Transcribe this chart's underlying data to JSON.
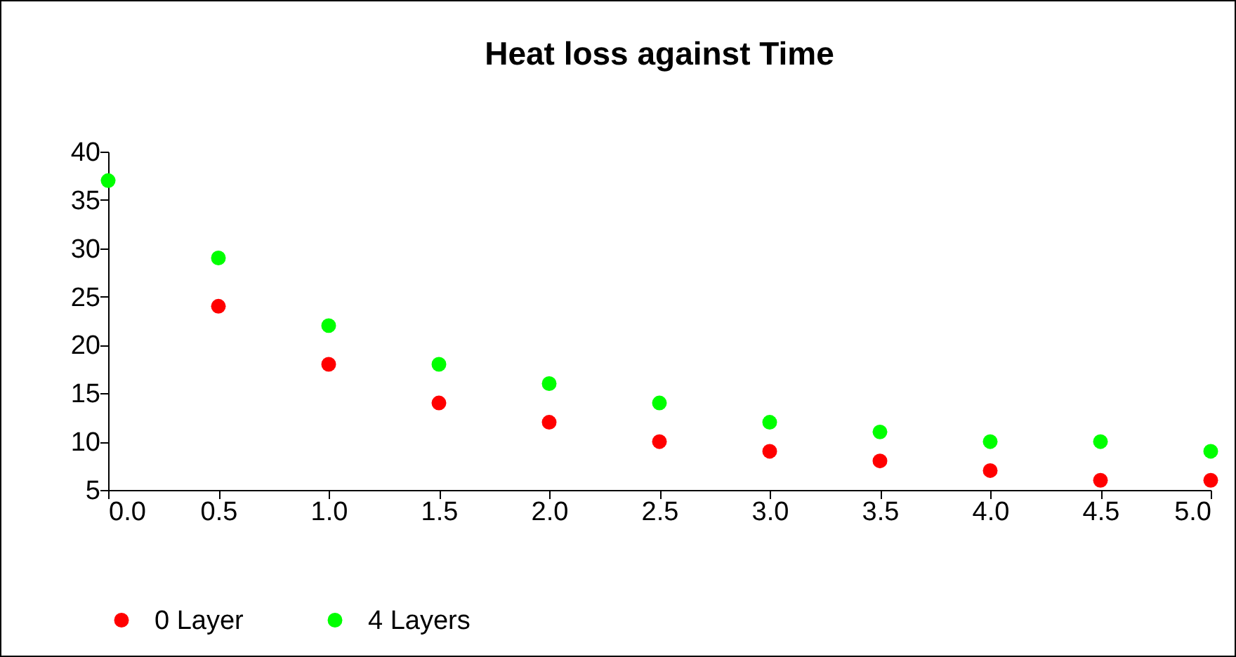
{
  "chart_data": {
    "type": "scatter",
    "title": "Heat loss against Time",
    "x": [
      0,
      0.5,
      1,
      1.5,
      2,
      2.5,
      3,
      3.5,
      4,
      4.5,
      5
    ],
    "series": [
      {
        "name": "0 Layer",
        "color": "#ff0000",
        "values": [
          null,
          24,
          18,
          14,
          12,
          10,
          9,
          8,
          7,
          6,
          6
        ]
      },
      {
        "name": "4 Layers",
        "color": "#00ff00",
        "values": [
          37,
          29,
          22,
          18,
          16,
          14,
          12,
          11,
          10,
          10,
          9
        ]
      }
    ],
    "xlim": [
      0,
      5
    ],
    "xticks": [
      {
        "value": 0,
        "label": "0.0"
      },
      {
        "value": 0.5,
        "label": "0.5"
      },
      {
        "value": 1,
        "label": "1.0"
      },
      {
        "value": 1.5,
        "label": "1.5"
      },
      {
        "value": 2,
        "label": "2.0"
      },
      {
        "value": 2.5,
        "label": "2.5"
      },
      {
        "value": 3,
        "label": "3.0"
      },
      {
        "value": 3.5,
        "label": "3.5"
      },
      {
        "value": 4,
        "label": "4.0"
      },
      {
        "value": 4.5,
        "label": "4.5"
      },
      {
        "value": 5,
        "label": "5.0"
      }
    ],
    "ylim": [
      5,
      40
    ],
    "yticks": [
      5,
      10,
      15,
      20,
      25,
      30,
      35,
      40
    ],
    "legend": "bottom",
    "marker": "circle",
    "grid": false
  }
}
